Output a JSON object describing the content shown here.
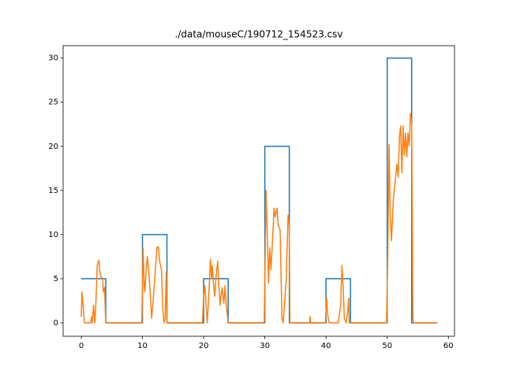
{
  "chart_data": {
    "type": "line",
    "title": "./data/mouseC/190712_154523.csv",
    "xlim": [
      -2.97,
      61.0
    ],
    "ylim": [
      -1.52,
      31.4
    ],
    "xticks": [
      0,
      10,
      20,
      30,
      40,
      50,
      60
    ],
    "yticks": [
      0,
      5,
      10,
      15,
      20,
      25,
      30
    ],
    "series": [
      {
        "color": "#1f77b4",
        "x": [
          0,
          4,
          4,
          10,
          10,
          14,
          14,
          20,
          20,
          24,
          24,
          30,
          30,
          34,
          34,
          40,
          40,
          44,
          44,
          50,
          50,
          54,
          54,
          58.2
        ],
        "values": [
          5,
          5,
          0,
          0,
          10,
          10,
          0,
          0,
          5,
          5,
          0,
          0,
          20,
          20,
          0,
          0,
          5,
          5,
          0,
          0,
          30,
          30,
          0,
          0
        ]
      },
      {
        "color": "#ff7f0e",
        "x": [
          0,
          0.1,
          0.3,
          0.5,
          1.5,
          1.7,
          1.8,
          2,
          2.2,
          2.4,
          2.6,
          2.9,
          3,
          3.2,
          3.5,
          3.6,
          3.8,
          4,
          9.9,
          10.1,
          10.3,
          10.4,
          10.6,
          10.8,
          11,
          11.3,
          11.5,
          11.8,
          12.1,
          12.4,
          12.6,
          12.8,
          13.1,
          13.3,
          13.5,
          13.7,
          13.9,
          14,
          19.8,
          20,
          20.2,
          20.4,
          20.6,
          20.9,
          21.1,
          21.3,
          21.4,
          21.6,
          21.8,
          22,
          22.3,
          22.5,
          22.7,
          23,
          23.3,
          23.5,
          23.7,
          24,
          29.9,
          30.2,
          30.4,
          30.6,
          30.8,
          31,
          31.3,
          31.5,
          31.7,
          32,
          32.2,
          32.5,
          32.8,
          33,
          33.5,
          33.8,
          34,
          34.1,
          37.3,
          37.4,
          37.5,
          39.9,
          40.1,
          40.3,
          40.5,
          42,
          42.4,
          42.6,
          42.8,
          43,
          43.3,
          43.5,
          43.7,
          43.8,
          49.9,
          50.1,
          50.3,
          50.5,
          50.7,
          51,
          51.3,
          51.6,
          51.8,
          52,
          52.2,
          52.4,
          52.6,
          52.8,
          53,
          53.2,
          53.4,
          53.6,
          53.8,
          54,
          54.2,
          54.3,
          58.2
        ],
        "values": [
          0.7,
          3.5,
          2,
          0,
          0,
          0.7,
          0,
          2,
          0,
          2.5,
          6.5,
          7.1,
          6,
          5.2,
          5,
          3.5,
          4,
          0,
          0,
          8.5,
          4,
          3.5,
          6,
          7.5,
          6,
          3,
          0.5,
          3,
          6,
          8.6,
          8.6,
          7,
          6,
          2,
          0,
          0.5,
          5.8,
          0,
          0,
          3,
          4.2,
          2,
          0,
          4,
          7.2,
          5,
          6.5,
          4.5,
          3,
          5,
          7,
          4,
          2,
          4,
          2.2,
          4.2,
          2,
          0,
          0,
          15,
          10,
          4.5,
          8.5,
          6,
          10,
          13,
          12,
          13,
          11,
          10.5,
          0.5,
          0,
          5,
          12.2,
          11,
          0,
          0,
          0.7,
          0,
          0,
          2.8,
          0.8,
          0,
          0,
          2,
          6.5,
          4,
          0.5,
          0,
          1,
          2.8,
          0,
          0,
          8,
          20.2,
          12,
          9.3,
          14,
          16,
          18,
          16.5,
          21,
          22.3,
          17,
          22.3,
          19,
          21.5,
          18.8,
          21.5,
          20,
          23.7,
          22.5,
          0.5,
          0,
          0
        ]
      }
    ]
  }
}
